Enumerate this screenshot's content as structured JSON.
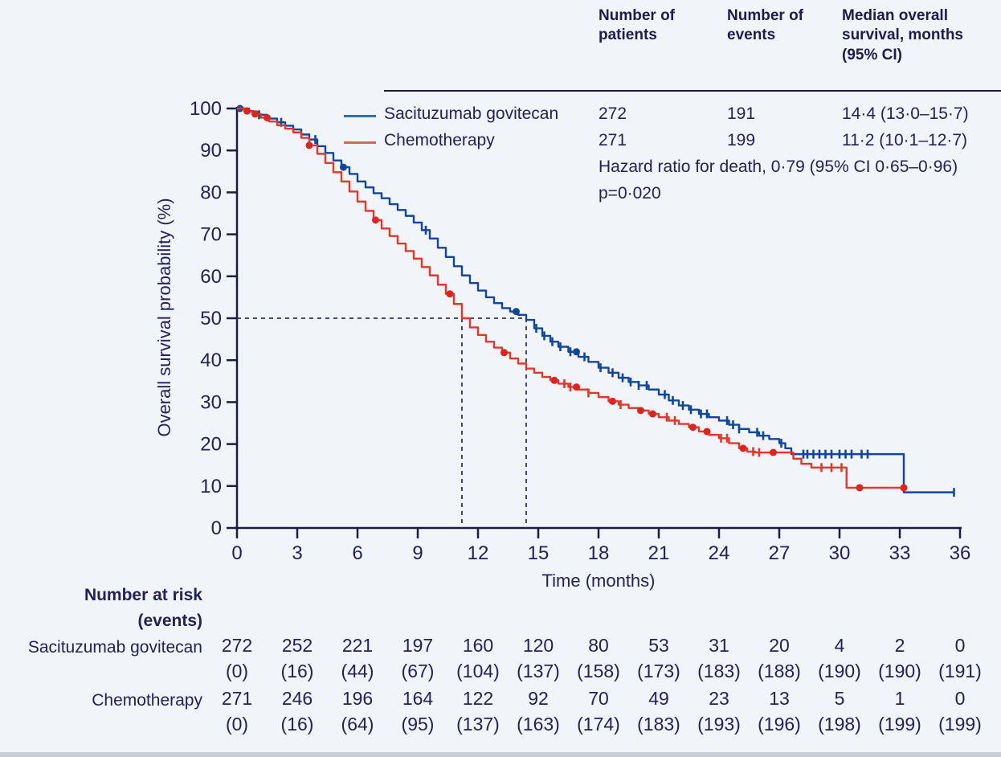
{
  "colors": {
    "background": "#f1f4f9",
    "text": "#23215a",
    "axis": "#1c1c42",
    "sacituzumab_blue": "#12459e",
    "chemotherapy_red": "#e5362b",
    "chemo_marker_red": "#df241f",
    "median_dash": "#31316b",
    "legend_swatch_blue": "#3a6ea5",
    "legend_swatch_red": "#cf6a5a"
  },
  "summary_table": {
    "col_headers": [
      "Number of patients",
      "Number of events",
      "Median overall survival, months (95% CI)"
    ],
    "rows": [
      {
        "label": "Sacituzumab govitecan",
        "patients": "272",
        "events": "191",
        "median": "14·4 (13·0–15·7)"
      },
      {
        "label": "Chemotherapy",
        "patients": "271",
        "events": "199",
        "median": "11·2 (10·1–12·7)"
      }
    ],
    "hazard_line1": "Hazard ratio for death, 0·79 (95% CI 0·65–0·96)",
    "hazard_line2": "p=0·020"
  },
  "chart_data": {
    "type": "line",
    "subtype": "kaplan-meier-step",
    "title": "",
    "xlabel": "Time (months)",
    "ylabel": "Overall survival probability (%)",
    "xlim": [
      0,
      36
    ],
    "ylim": [
      0,
      100
    ],
    "x_ticks": [
      0,
      3,
      6,
      9,
      12,
      15,
      18,
      21,
      24,
      27,
      30,
      33,
      36
    ],
    "y_ticks": [
      0,
      10,
      20,
      30,
      40,
      50,
      60,
      70,
      80,
      90,
      100
    ],
    "grid": false,
    "legend_position": "top-left-inside",
    "median_guides": {
      "y": 50,
      "x": [
        11.2,
        14.4
      ]
    },
    "axis_color": "#1c1c42",
    "text_color": "#23215a",
    "dash_color": "#31316b",
    "series": [
      {
        "name": "Sacituzumab govitecan",
        "color": "#12459e",
        "marker_color": "#12459e",
        "median_months": 14.4,
        "steps": [
          [
            0,
            100
          ],
          [
            0.6,
            99.3
          ],
          [
            1,
            98.5
          ],
          [
            1.5,
            97.6
          ],
          [
            2,
            96.7
          ],
          [
            2.4,
            95.9
          ],
          [
            2.8,
            95
          ],
          [
            3.2,
            93.8
          ],
          [
            3.6,
            92.6
          ],
          [
            4,
            91
          ],
          [
            4.4,
            89.4
          ],
          [
            4.8,
            87.6
          ],
          [
            5.2,
            86
          ],
          [
            5.6,
            84.4
          ],
          [
            6,
            82.6
          ],
          [
            6.4,
            81.2
          ],
          [
            6.8,
            79.8
          ],
          [
            7.2,
            78.6
          ],
          [
            7.6,
            77.2
          ],
          [
            8,
            75.8
          ],
          [
            8.4,
            74.4
          ],
          [
            8.8,
            72.8
          ],
          [
            9.2,
            71
          ],
          [
            9.6,
            69
          ],
          [
            10,
            66.8
          ],
          [
            10.4,
            64.6
          ],
          [
            10.8,
            62.4
          ],
          [
            11.2,
            60.2
          ],
          [
            11.6,
            58.4
          ],
          [
            12,
            56.6
          ],
          [
            12.4,
            55
          ],
          [
            12.8,
            53.6
          ],
          [
            13.2,
            52.4
          ],
          [
            13.6,
            51.6
          ],
          [
            14,
            50.8
          ],
          [
            14.4,
            49.6
          ],
          [
            14.8,
            47.6
          ],
          [
            15.2,
            45.8
          ],
          [
            15.6,
            44.4
          ],
          [
            16,
            43.2
          ],
          [
            16.5,
            42
          ],
          [
            17,
            40.8
          ],
          [
            17.5,
            39.6
          ],
          [
            18,
            38.2
          ],
          [
            18.5,
            37
          ],
          [
            19,
            35.8
          ],
          [
            19.5,
            34.8
          ],
          [
            20,
            34
          ],
          [
            20.5,
            33
          ],
          [
            21,
            31.8
          ],
          [
            21.5,
            30.4
          ],
          [
            22,
            29.2
          ],
          [
            22.5,
            28.2
          ],
          [
            23,
            27.2
          ],
          [
            23.5,
            26.4
          ],
          [
            24,
            25.6
          ],
          [
            24.5,
            24.6
          ],
          [
            25,
            23.6
          ],
          [
            25.5,
            22.8
          ],
          [
            26,
            22
          ],
          [
            26.5,
            21.2
          ],
          [
            27,
            20.2
          ],
          [
            27.3,
            19
          ],
          [
            27.6,
            17.6
          ],
          [
            33.2,
            8.5
          ],
          [
            35.7,
            8.5
          ]
        ],
        "censors": [
          1.1,
          2.2,
          3.9,
          9.4,
          14.9,
          15.3,
          15.7,
          16.1,
          16.6,
          17.3,
          18.1,
          18.7,
          19.2,
          19.6,
          20,
          20.4,
          21.3,
          21.7,
          22.2,
          22.6,
          23.1,
          23.4,
          24.4,
          24.7,
          25,
          25.9,
          26.2,
          27.1,
          28.2,
          28.4,
          28.7,
          29,
          29.3,
          29.6,
          30,
          30.3,
          30.6,
          31.1,
          31.4,
          35.7
        ],
        "dots": [
          0.15,
          5.3,
          13.9,
          16.9
        ]
      },
      {
        "name": "Chemotherapy",
        "color": "#e5362b",
        "marker_color": "#df241f",
        "median_months": 11.2,
        "steps": [
          [
            0,
            100
          ],
          [
            0.4,
            99.4
          ],
          [
            0.8,
            98.7
          ],
          [
            1.2,
            97.8
          ],
          [
            1.6,
            96.9
          ],
          [
            2,
            96
          ],
          [
            2.4,
            95.2
          ],
          [
            2.8,
            94.3
          ],
          [
            3.2,
            93
          ],
          [
            3.6,
            91.2
          ],
          [
            4,
            89.2
          ],
          [
            4.4,
            87
          ],
          [
            4.8,
            84.8
          ],
          [
            5.2,
            82.6
          ],
          [
            5.6,
            80.2
          ],
          [
            6,
            77.8
          ],
          [
            6.4,
            75.6
          ],
          [
            6.8,
            73.4
          ],
          [
            7.2,
            71.4
          ],
          [
            7.6,
            69.6
          ],
          [
            8,
            67.8
          ],
          [
            8.4,
            66
          ],
          [
            8.8,
            64.2
          ],
          [
            9.2,
            62.2
          ],
          [
            9.6,
            60.2
          ],
          [
            10,
            58
          ],
          [
            10.4,
            55.8
          ],
          [
            10.8,
            53.4
          ],
          [
            11.2,
            50
          ],
          [
            11.6,
            47.8
          ],
          [
            12,
            46
          ],
          [
            12.4,
            44.4
          ],
          [
            12.8,
            43
          ],
          [
            13.2,
            41.8
          ],
          [
            13.6,
            40.4
          ],
          [
            14,
            39.2
          ],
          [
            14.4,
            38
          ],
          [
            14.8,
            37
          ],
          [
            15.2,
            36
          ],
          [
            15.6,
            35.2
          ],
          [
            16,
            34.4
          ],
          [
            16.5,
            33.6
          ],
          [
            17,
            33
          ],
          [
            17.5,
            32.2
          ],
          [
            18,
            31.2
          ],
          [
            18.5,
            30.2
          ],
          [
            19,
            29.4
          ],
          [
            19.5,
            28.6
          ],
          [
            20,
            28
          ],
          [
            20.5,
            27.2
          ],
          [
            21,
            26.4
          ],
          [
            21.5,
            25.6
          ],
          [
            22,
            24.8
          ],
          [
            22.5,
            24
          ],
          [
            23,
            23
          ],
          [
            23.5,
            22.2
          ],
          [
            24,
            21.4
          ],
          [
            24.5,
            20.2
          ],
          [
            25,
            19
          ],
          [
            25.4,
            18.2
          ],
          [
            25.8,
            18
          ],
          [
            27.7,
            16.5
          ],
          [
            28.1,
            15.3
          ],
          [
            28.6,
            14.4
          ],
          [
            30.35,
            9.6
          ],
          [
            33.2,
            9.6
          ]
        ],
        "censors": [
          16.3,
          16.6,
          17.5,
          19.1,
          21.4,
          21.8,
          24.1,
          24.4,
          25.7,
          26,
          29.1,
          29.6,
          30.1
        ],
        "dots": [
          0.5,
          0.9,
          1.5,
          3.6,
          6.9,
          10.6,
          13.3,
          15.8,
          16.9,
          18.7,
          20.1,
          20.7,
          22.7,
          23.4,
          25.2,
          26.7,
          31,
          33.2
        ]
      }
    ]
  },
  "risk_table": {
    "header_line1": "Number at risk",
    "header_line2": "(events)",
    "rows": [
      {
        "label": "Sacituzumab govitecan",
        "at_risk": [
          "272",
          "252",
          "221",
          "197",
          "160",
          "120",
          "80",
          "53",
          "31",
          "20",
          "4",
          "2",
          "0"
        ],
        "events": [
          "(0)",
          "(16)",
          "(44)",
          "(67)",
          "(104)",
          "(137)",
          "(158)",
          "(173)",
          "(183)",
          "(188)",
          "(190)",
          "(190)",
          "(191)"
        ]
      },
      {
        "label": "Chemotherapy",
        "at_risk": [
          "271",
          "246",
          "196",
          "164",
          "122",
          "92",
          "70",
          "49",
          "23",
          "13",
          "5",
          "1",
          "0"
        ],
        "events": [
          "(0)",
          "(16)",
          "(64)",
          "(95)",
          "(137)",
          "(163)",
          "(174)",
          "(183)",
          "(193)",
          "(196)",
          "(198)",
          "(199)",
          "(199)"
        ]
      }
    ]
  }
}
